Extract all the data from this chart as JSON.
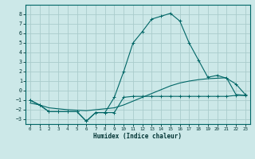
{
  "xlabel": "Humidex (Indice chaleur)",
  "bg_color": "#cce8e8",
  "grid_color": "#aacccc",
  "line_color": "#006666",
  "xlim": [
    -0.5,
    23.5
  ],
  "ylim": [
    -3.5,
    9.0
  ],
  "xticks": [
    0,
    1,
    2,
    3,
    4,
    5,
    6,
    7,
    8,
    9,
    10,
    11,
    12,
    13,
    14,
    15,
    16,
    17,
    18,
    19,
    20,
    21,
    22,
    23
  ],
  "yticks": [
    -3,
    -2,
    -1,
    0,
    1,
    2,
    3,
    4,
    5,
    6,
    7,
    8
  ],
  "line1_x": [
    0,
    1,
    2,
    3,
    4,
    5,
    6,
    7,
    8,
    9,
    10,
    11,
    12,
    13,
    14,
    15,
    16,
    17,
    18,
    19,
    20,
    21,
    22,
    23
  ],
  "line1_y": [
    -1.0,
    -1.5,
    -2.2,
    -2.2,
    -2.2,
    -2.2,
    -3.2,
    -2.3,
    -2.3,
    -0.7,
    2.0,
    5.0,
    6.2,
    7.5,
    7.8,
    8.1,
    7.3,
    5.0,
    3.2,
    1.4,
    1.6,
    1.3,
    0.7,
    -0.4
  ],
  "line2_x": [
    0,
    1,
    2,
    3,
    4,
    5,
    6,
    7,
    8,
    9,
    10,
    11,
    12,
    13,
    14,
    15,
    16,
    17,
    18,
    19,
    20,
    21,
    22,
    23
  ],
  "line2_y": [
    -1.0,
    -1.5,
    -2.2,
    -2.2,
    -2.2,
    -2.2,
    -3.2,
    -2.3,
    -2.3,
    -2.3,
    -0.7,
    -0.6,
    -0.6,
    -0.6,
    -0.6,
    -0.6,
    -0.6,
    -0.6,
    -0.6,
    -0.6,
    -0.6,
    -0.6,
    -0.5,
    -0.5
  ],
  "line3_x": [
    0,
    1,
    2,
    3,
    4,
    5,
    6,
    7,
    8,
    9,
    10,
    11,
    12,
    13,
    14,
    15,
    16,
    17,
    18,
    19,
    20,
    21,
    22,
    23
  ],
  "line3_y": [
    -1.3,
    -1.5,
    -1.8,
    -1.9,
    -2.0,
    -2.05,
    -2.1,
    -2.0,
    -1.9,
    -1.8,
    -1.5,
    -1.1,
    -0.7,
    -0.3,
    0.1,
    0.5,
    0.8,
    1.0,
    1.15,
    1.25,
    1.3,
    1.35,
    -0.4,
    -0.5
  ]
}
